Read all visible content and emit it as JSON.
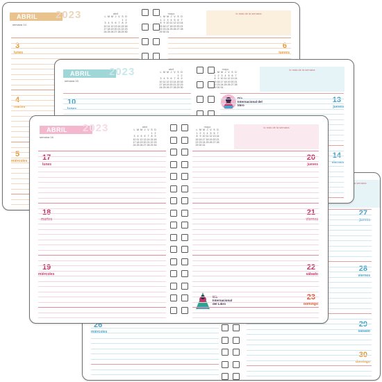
{
  "colors": {
    "peach": "#e9c38e",
    "teal": "#9fd6d8",
    "pink": "#f3b8ce",
    "blue": "#4aa3c6",
    "rose": "#d88a8a",
    "orange": "#e59a39",
    "magenta": "#c4376a"
  },
  "calendar": {
    "abril_title": "abril",
    "mayo_title": "mayo",
    "weekday_header": [
      "L",
      "M",
      "M",
      "J",
      "V",
      "S",
      "D"
    ],
    "abril_rows": [
      [
        "",
        "",
        "",
        "",
        "",
        "1",
        "2"
      ],
      [
        "3",
        "4",
        "5",
        "6",
        "7",
        "8",
        "9"
      ],
      [
        "10",
        "11",
        "12",
        "13",
        "14",
        "15",
        "16"
      ],
      [
        "17",
        "18",
        "19",
        "20",
        "21",
        "22",
        "23"
      ],
      [
        "24",
        "25",
        "26",
        "27",
        "28",
        "29",
        "30"
      ]
    ],
    "mayo_rows": [
      [
        "1",
        "2",
        "3",
        "4",
        "5",
        "6",
        "7"
      ],
      [
        "8",
        "9",
        "10",
        "11",
        "12",
        "13",
        "14"
      ],
      [
        "15",
        "16",
        "17",
        "18",
        "19",
        "20",
        "21"
      ],
      [
        "22",
        "23",
        "24",
        "25",
        "26",
        "27",
        "28"
      ],
      [
        "29",
        "30",
        "31",
        "",
        "",
        "",
        ""
      ]
    ]
  },
  "common": {
    "month": "ABRIL",
    "year": "2023",
    "notes_label": "lo más de la semana"
  },
  "planner1": {
    "week": "semana 14",
    "days": [
      [
        "3",
        "lunes"
      ],
      [
        "4",
        "martes"
      ],
      [
        "5",
        "miércoles"
      ],
      [
        "6",
        "jueves"
      ]
    ]
  },
  "planner2": {
    "week": "semana 15",
    "days": [
      [
        "10",
        "lunes"
      ],
      [
        "13",
        "jueves"
      ],
      [
        "14",
        "viernes"
      ]
    ],
    "sticker": "Día Internacional del libro"
  },
  "planner3": {
    "week": "semana 16",
    "days": [
      [
        "17",
        "lunes"
      ],
      [
        "18",
        "martes"
      ],
      [
        "19",
        "miércoles"
      ],
      [
        "20",
        "jueves"
      ],
      [
        "21",
        "viernes"
      ],
      [
        "22",
        "sábado"
      ],
      [
        "23",
        "domingo"
      ]
    ],
    "sticker": "Día Internacional del Libro"
  },
  "planner4": {
    "days": [
      [
        "26",
        "miércoles"
      ],
      [
        "27",
        "jueves"
      ],
      [
        "28",
        "viernes"
      ],
      [
        "29",
        "sábado"
      ],
      [
        "30",
        "domingo"
      ]
    ]
  }
}
